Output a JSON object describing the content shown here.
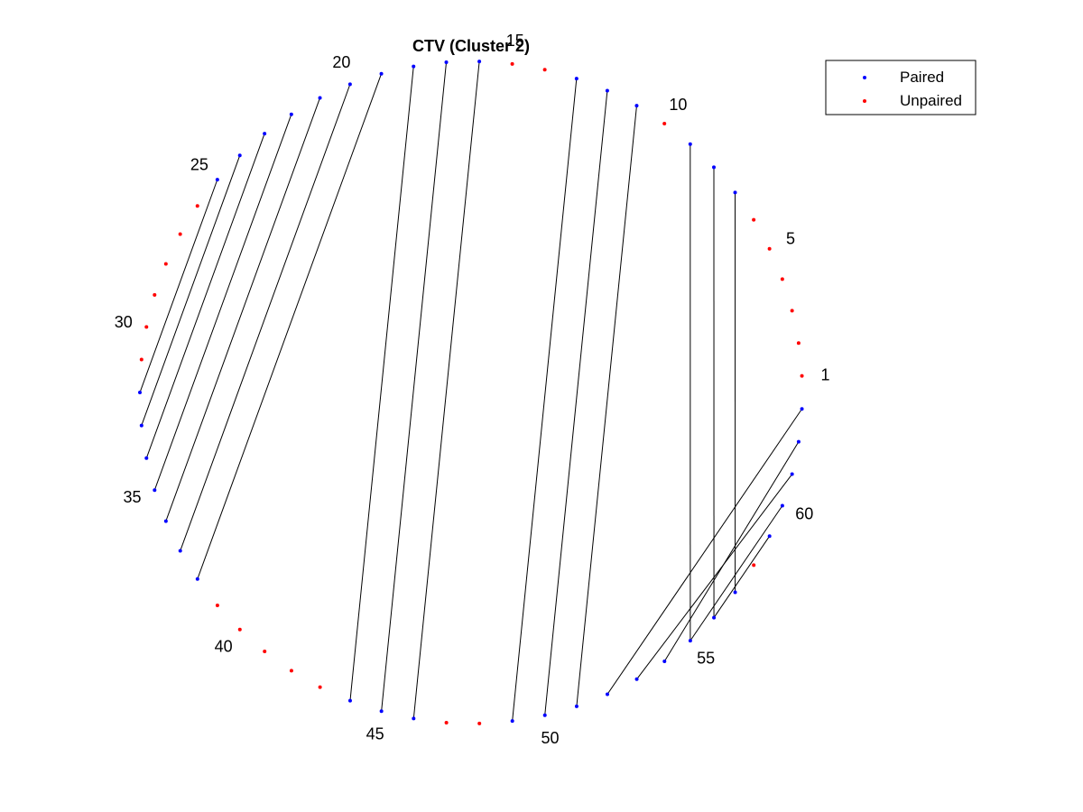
{
  "chart_data": {
    "type": "arc-diagram",
    "title": "CTV (Cluster 2)",
    "node_count": 63,
    "labeled_nodes": [
      "1",
      "5",
      "10",
      "15",
      "20",
      "25",
      "30",
      "35",
      "40",
      "45",
      "50",
      "55",
      "60"
    ],
    "pairs": [
      [
        7,
        57
      ],
      [
        8,
        56
      ],
      [
        9,
        55
      ],
      [
        11,
        51
      ],
      [
        12,
        50
      ],
      [
        13,
        49
      ],
      [
        16,
        46
      ],
      [
        17,
        45
      ],
      [
        18,
        44
      ],
      [
        19,
        38
      ],
      [
        20,
        37
      ],
      [
        21,
        36
      ],
      [
        22,
        35
      ],
      [
        23,
        34
      ],
      [
        24,
        33
      ],
      [
        25,
        32
      ],
      [
        61,
        53
      ],
      [
        62,
        54
      ],
      [
        63,
        52
      ],
      [
        60,
        55
      ],
      [
        59,
        56
      ]
    ],
    "unpaired": [
      1,
      2,
      3,
      4,
      5,
      6,
      10,
      14,
      15,
      26,
      27,
      28,
      29,
      30,
      31,
      39,
      40,
      41,
      42,
      43,
      47,
      48,
      58
    ],
    "series": [
      {
        "name": "Paired",
        "color": "#0000ff"
      },
      {
        "name": "Unpaired",
        "color": "#ff0000"
      }
    ],
    "legend": {
      "position": "top-right"
    },
    "grid": false
  }
}
